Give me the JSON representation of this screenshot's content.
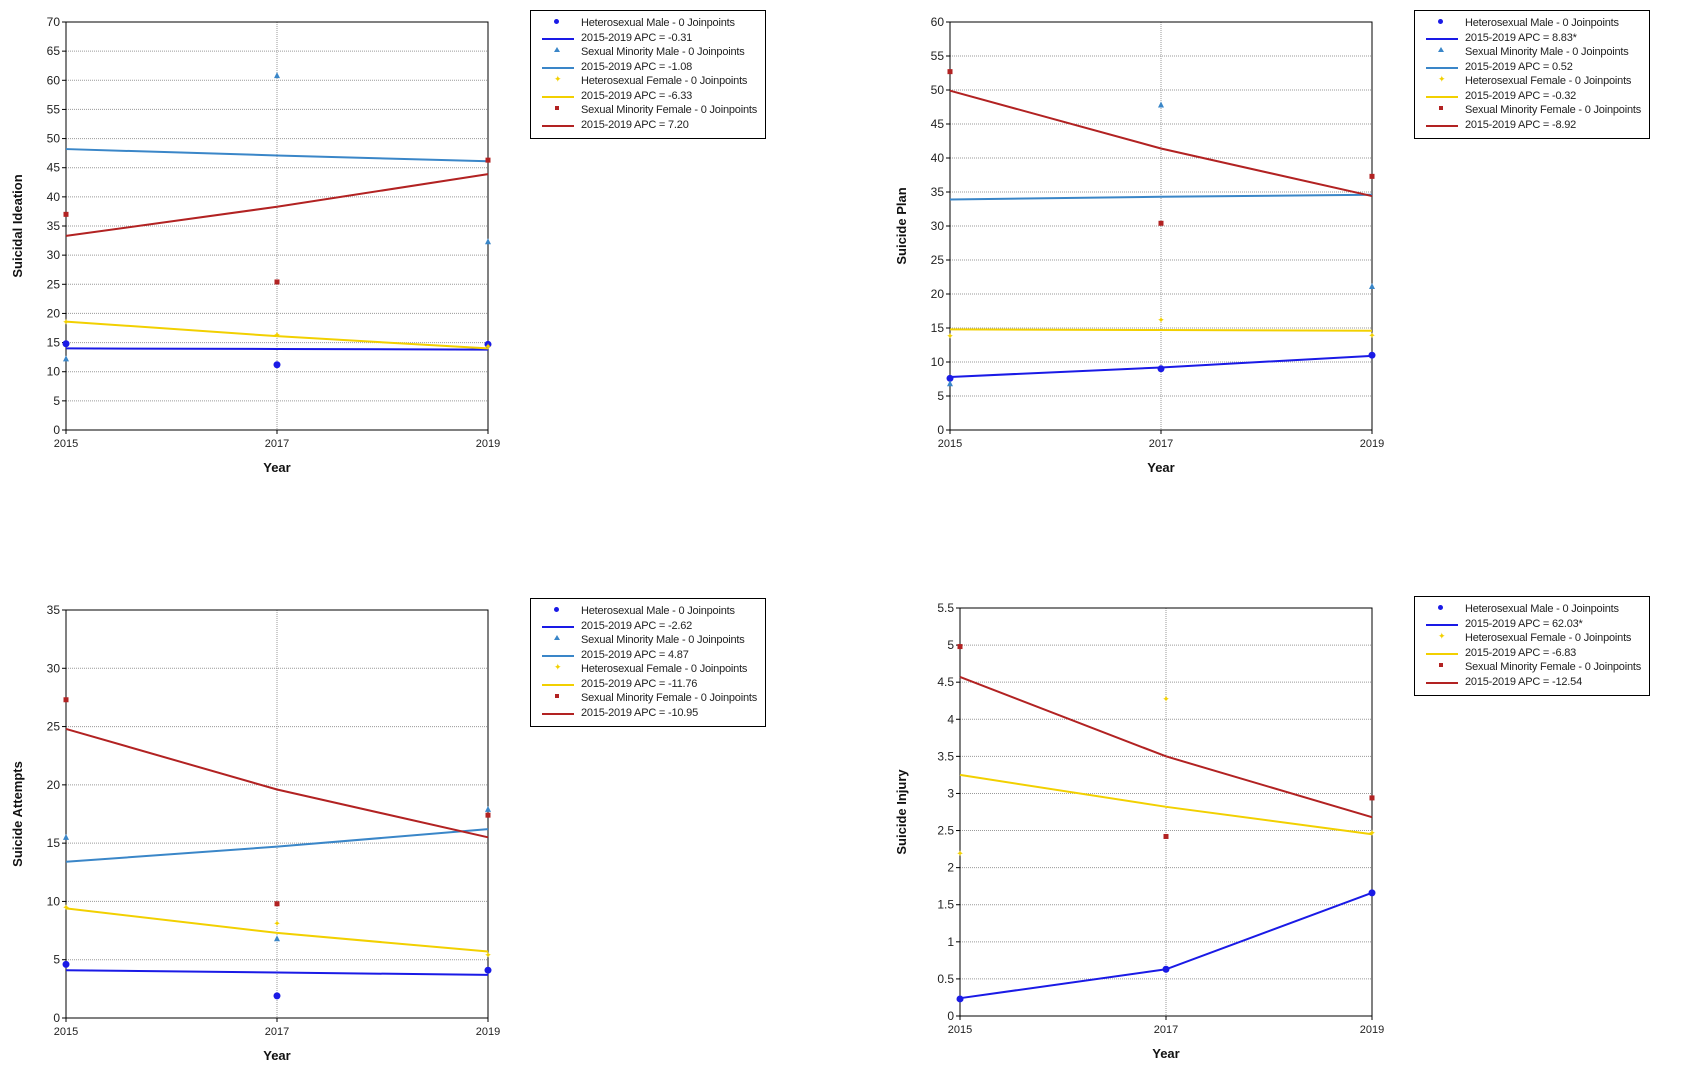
{
  "colors": {
    "heterosexual_male": "#1a1ae6",
    "sexual_minority_male": "#3a86c8",
    "heterosexual_female": "#f2d000",
    "sexual_minority_female": "#b22222"
  },
  "chart_data": [
    {
      "type": "line",
      "title": "",
      "xlabel": "Year",
      "ylabel": "Suicidal Ideation",
      "x": [
        2015,
        2017,
        2019
      ],
      "xticks": [
        "2015",
        "2017",
        "2019"
      ],
      "ylim": [
        0,
        70
      ],
      "yticks": [
        0,
        5,
        10,
        15,
        20,
        25,
        30,
        35,
        40,
        45,
        50,
        55,
        60,
        65,
        70
      ],
      "grid": true,
      "legend_position": "right",
      "series": [
        {
          "name": "Heterosexual Male - 0 Joinpoints",
          "marker": "dot",
          "color_key": "heterosexual_male",
          "points": [
            14.8,
            11.2,
            14.7
          ],
          "fit": [
            14.0,
            13.9,
            13.8
          ],
          "apc_label": "2015-2019 APC  = -0.31"
        },
        {
          "name": "Sexual Minority Male - 0 Joinpoints",
          "marker": "triangle",
          "color_key": "sexual_minority_male",
          "points": [
            12.2,
            60.8,
            32.3
          ],
          "fit": [
            48.2,
            47.1,
            46.1
          ],
          "apc_label": "2015-2019 APC  = -1.08"
        },
        {
          "name": "Heterosexual Female - 0 Joinpoints",
          "marker": "star",
          "color_key": "heterosexual_female",
          "points": [
            18.5,
            16.3,
            14.3
          ],
          "fit": [
            18.6,
            16.1,
            14.0
          ],
          "apc_label": "2015-2019 APC  = -6.33"
        },
        {
          "name": "Sexual Minority Female - 0 Joinpoints",
          "marker": "square",
          "color_key": "sexual_minority_female",
          "points": [
            37.0,
            25.4,
            46.3
          ],
          "fit": [
            33.3,
            38.3,
            43.9
          ],
          "apc_label": "2015-2019 APC  = 7.20"
        }
      ]
    },
    {
      "type": "line",
      "title": "",
      "xlabel": "Year",
      "ylabel": "Suicide Plan",
      "x": [
        2015,
        2017,
        2019
      ],
      "xticks": [
        "2015",
        "2017",
        "2019"
      ],
      "ylim": [
        0,
        60
      ],
      "yticks": [
        0,
        5,
        10,
        15,
        20,
        25,
        30,
        35,
        40,
        45,
        50,
        55,
        60
      ],
      "grid": true,
      "legend_position": "right",
      "series": [
        {
          "name": "Heterosexual Male - 0 Joinpoints",
          "marker": "dot",
          "color_key": "heterosexual_male",
          "points": [
            7.6,
            9.0,
            11.0
          ],
          "fit": [
            7.8,
            9.2,
            10.9
          ],
          "apc_label": "2015-2019 APC  = 8.83*"
        },
        {
          "name": "Sexual Minority Male - 0 Joinpoints",
          "marker": "triangle",
          "color_key": "sexual_minority_male",
          "points": [
            6.8,
            47.8,
            21.1
          ],
          "fit": [
            33.9,
            34.3,
            34.6
          ],
          "apc_label": "2015-2019 APC  = 0.52"
        },
        {
          "name": "Heterosexual Female - 0 Joinpoints",
          "marker": "star",
          "color_key": "heterosexual_female",
          "points": [
            13.8,
            16.2,
            13.9
          ],
          "fit": [
            14.8,
            14.7,
            14.6
          ],
          "apc_label": "2015-2019 APC  = -0.32"
        },
        {
          "name": "Sexual Minority Female - 0 Joinpoints",
          "marker": "square",
          "color_key": "sexual_minority_female",
          "points": [
            52.7,
            30.4,
            37.3
          ],
          "fit": [
            49.9,
            41.4,
            34.4
          ],
          "apc_label": "2015-2019 APC  = -8.92"
        }
      ]
    },
    {
      "type": "line",
      "title": "",
      "xlabel": "Year",
      "ylabel": "Suicide Attempts",
      "x": [
        2015,
        2017,
        2019
      ],
      "xticks": [
        "2015",
        "2017",
        "2019"
      ],
      "ylim": [
        0,
        35
      ],
      "yticks": [
        0,
        5,
        10,
        15,
        20,
        25,
        30,
        35
      ],
      "grid": true,
      "legend_position": "right",
      "series": [
        {
          "name": "Heterosexual Male - 0 Joinpoints",
          "marker": "dot",
          "color_key": "heterosexual_male",
          "points": [
            4.6,
            1.9,
            4.1
          ],
          "fit": [
            4.1,
            3.9,
            3.7
          ],
          "apc_label": "2015-2019 APC  = -2.62"
        },
        {
          "name": "Sexual Minority Male - 0 Joinpoints",
          "marker": "triangle",
          "color_key": "sexual_minority_male",
          "points": [
            15.5,
            6.8,
            17.9
          ],
          "fit": [
            13.4,
            14.7,
            16.2
          ],
          "apc_label": "2015-2019 APC  = 4.87"
        },
        {
          "name": "Heterosexual Female - 0 Joinpoints",
          "marker": "star",
          "color_key": "heterosexual_female",
          "points": [
            9.5,
            8.1,
            5.4
          ],
          "fit": [
            9.4,
            7.3,
            5.7
          ],
          "apc_label": "2015-2019 APC  = -11.76"
        },
        {
          "name": "Sexual Minority Female - 0 Joinpoints",
          "marker": "square",
          "color_key": "sexual_minority_female",
          "points": [
            27.3,
            9.8,
            17.4
          ],
          "fit": [
            24.8,
            19.6,
            15.5
          ],
          "apc_label": "2015-2019 APC  = -10.95"
        }
      ]
    },
    {
      "type": "line",
      "title": "",
      "xlabel": "Year",
      "ylabel": "Suicide Injury",
      "x": [
        2015,
        2017,
        2019
      ],
      "xticks": [
        "2015",
        "2017",
        "2019"
      ],
      "ylim": [
        0,
        5.5
      ],
      "yticks": [
        0,
        0.5,
        1,
        1.5,
        2,
        2.5,
        3,
        3.5,
        4,
        4.5,
        5,
        5.5
      ],
      "grid": true,
      "legend_position": "right",
      "series": [
        {
          "name": "Heterosexual Male - 0 Joinpoints",
          "marker": "dot",
          "color_key": "heterosexual_male",
          "points": [
            0.23,
            0.63,
            1.66
          ],
          "fit": [
            0.24,
            0.63,
            1.66
          ],
          "apc_label": "2015-2019 APC  = 62.03*"
        },
        {
          "name": "Heterosexual Female - 0 Joinpoints",
          "marker": "star",
          "color_key": "heterosexual_female",
          "points": [
            2.19,
            4.27,
            2.47
          ],
          "fit": [
            3.25,
            2.82,
            2.45
          ],
          "apc_label": "2015-2019 APC  = -6.83"
        },
        {
          "name": "Sexual Minority Female - 0 Joinpoints",
          "marker": "square",
          "color_key": "sexual_minority_female",
          "points": [
            4.98,
            2.42,
            2.94
          ],
          "fit": [
            4.57,
            3.5,
            2.68
          ],
          "apc_label": "2015-2019 APC  = -12.54"
        }
      ]
    }
  ]
}
